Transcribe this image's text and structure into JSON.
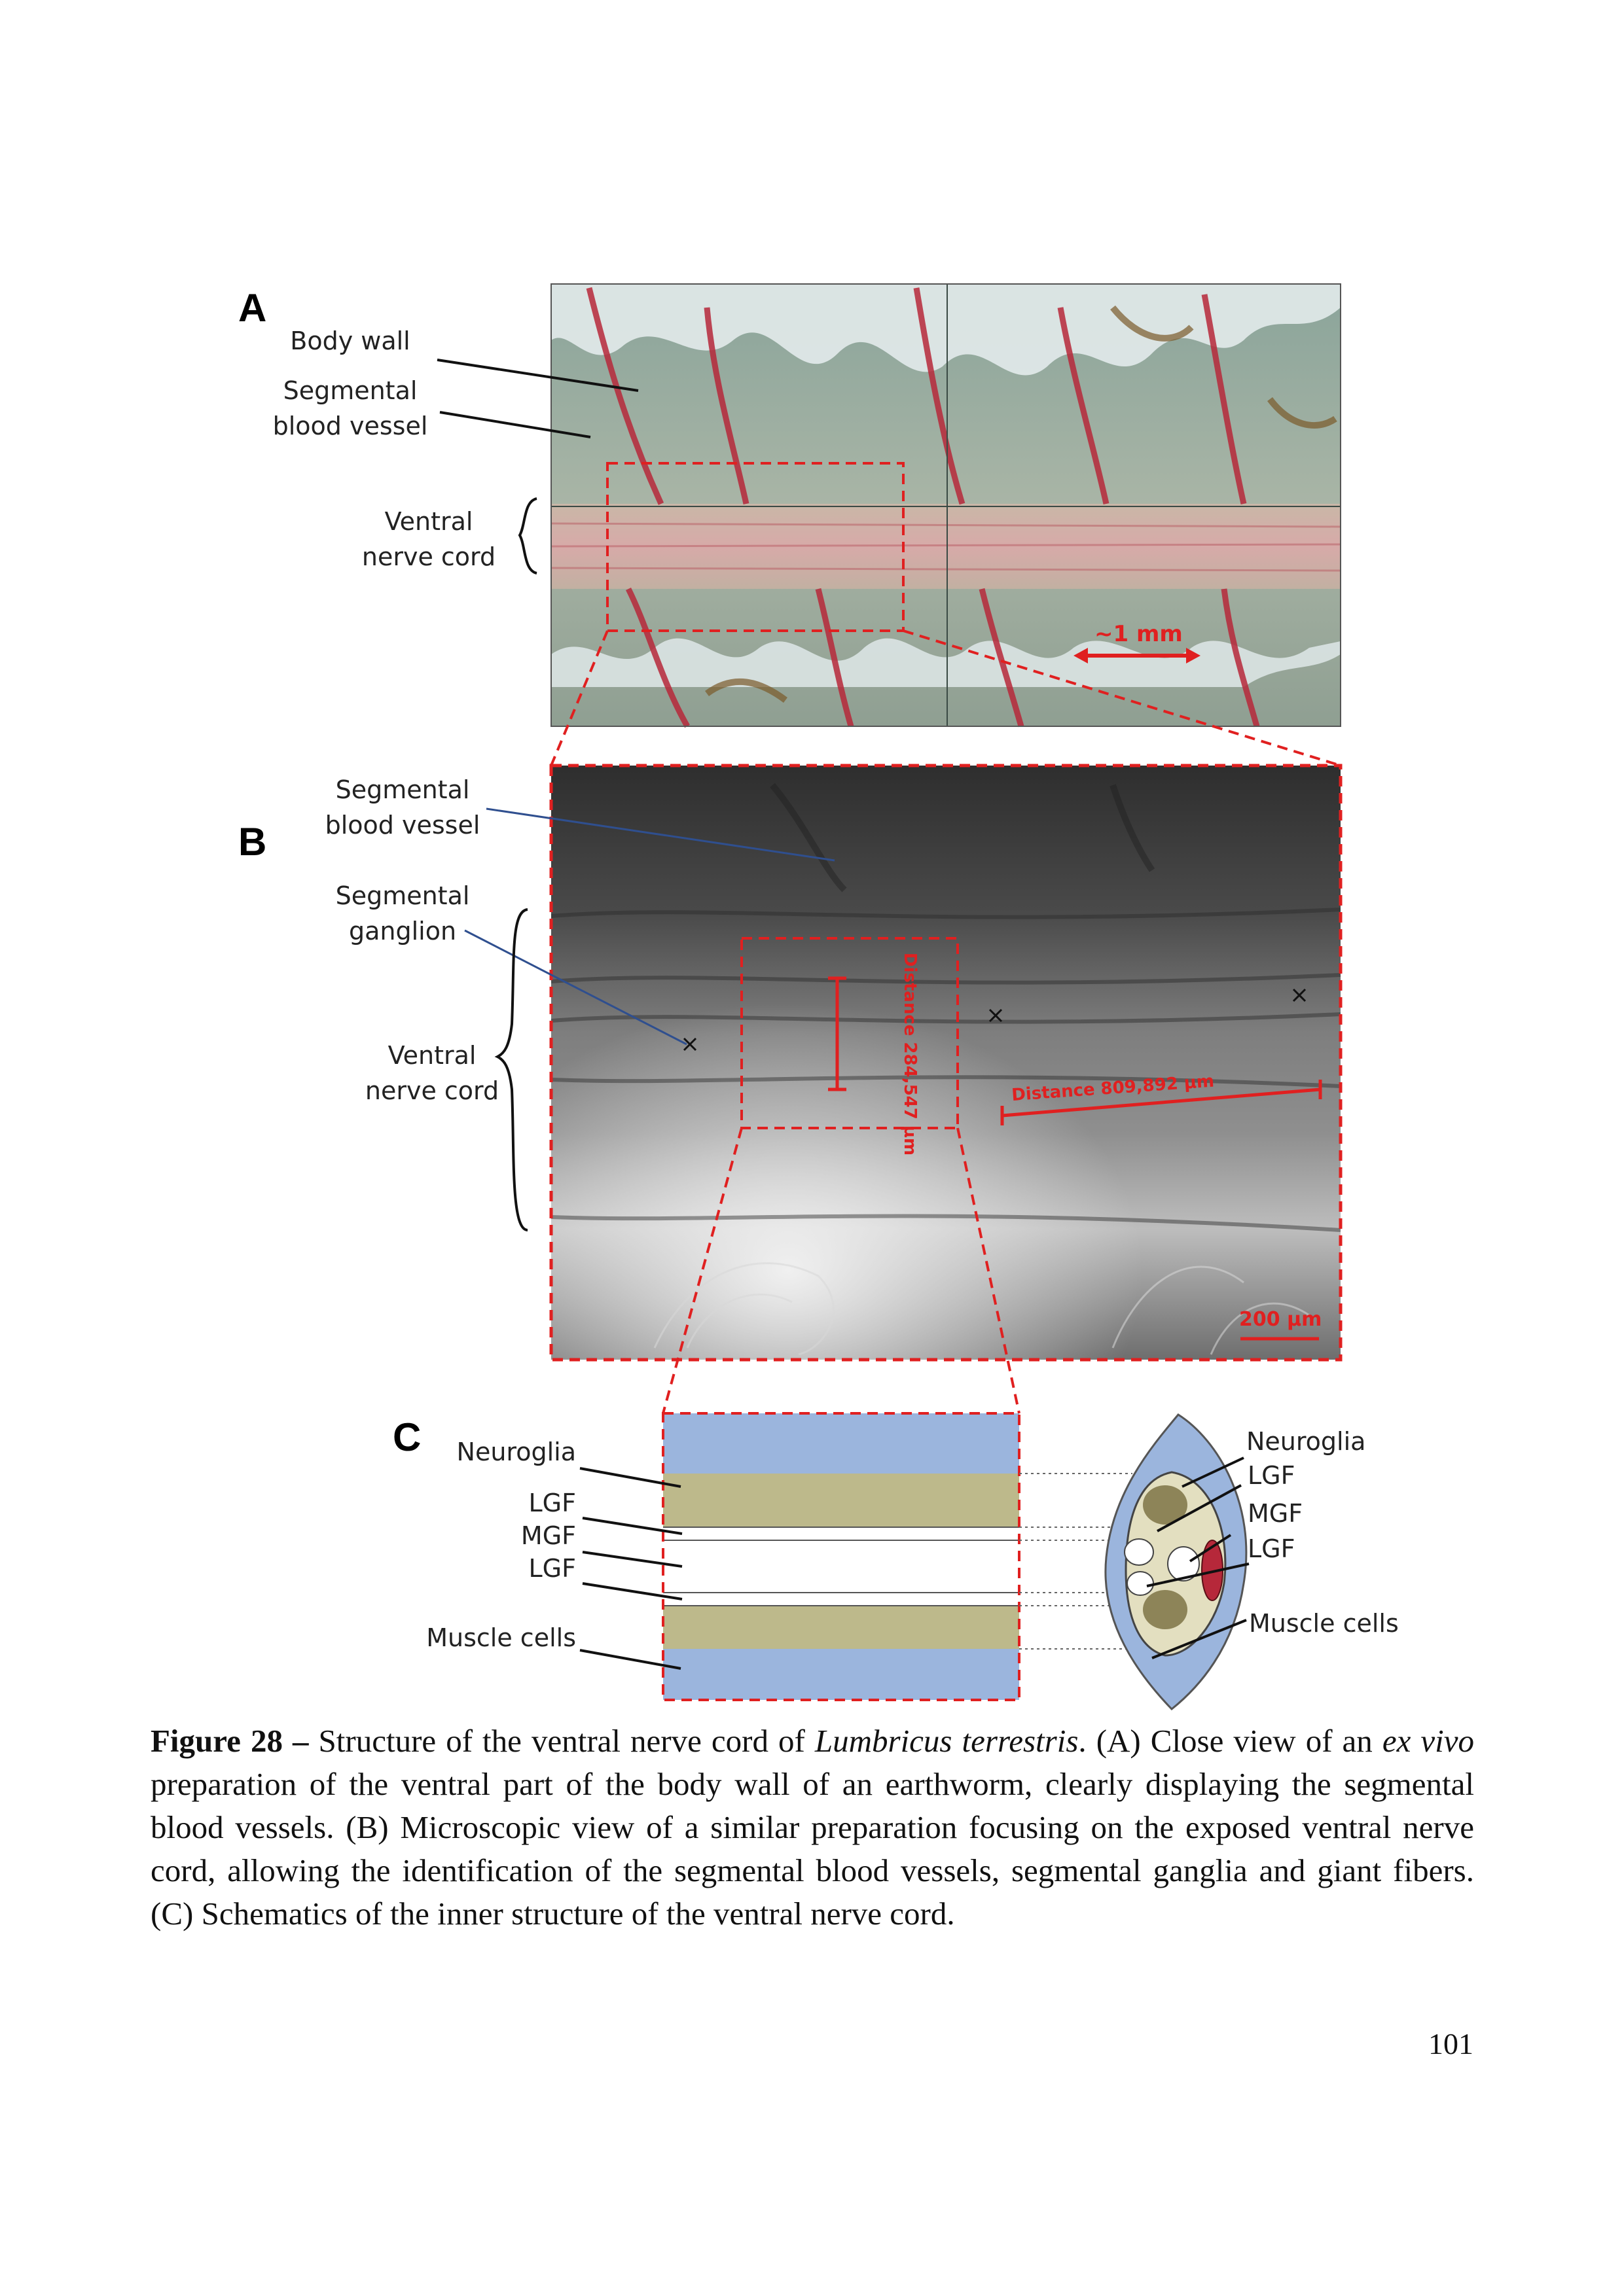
{
  "panels": {
    "a": "A",
    "b": "B",
    "c": "C"
  },
  "panel_a": {
    "body_wall": "Body wall",
    "seg_vessel_line1": "Segmental",
    "seg_vessel_line2": "blood vessel",
    "vnc_line1": "Ventral",
    "vnc_line2": "nerve cord",
    "scale": "~1 mm"
  },
  "panel_b": {
    "seg_vessel_line1": "Segmental",
    "seg_vessel_line2": "blood vessel",
    "ganglion_line1": "Segmental",
    "ganglion_line2": "ganglion",
    "vnc_line1": "Ventral",
    "vnc_line2": "nerve cord",
    "dist_vertical": "Distance 284,547 µm",
    "dist_horizontal": "Distance 809,892 µm",
    "scale": "200 µm"
  },
  "panel_c": {
    "left_neuroglia": "Neuroglia",
    "left_lgf1": "LGF",
    "left_mgf": "MGF",
    "left_lgf2": "LGF",
    "left_muscle": "Muscle cells",
    "right_neuroglia": "Neuroglia",
    "right_lgf1": "LGF",
    "right_mgf": "MGF",
    "right_lgf2": "LGF",
    "right_muscle": "Muscle cells"
  },
  "colors": {
    "neuroglia": "#bdb98b",
    "muscle": "#9bb5dd",
    "fiber": "#ffffff",
    "dash": "#e02020",
    "vessel": "#b6283a"
  },
  "caption": {
    "figure_label": "Figure 28",
    "dash": " – ",
    "text1": "Structure of the ventral nerve cord of ",
    "species": "Lumbricus terrestris",
    "text2": ". (A) Close view of an ",
    "ex": "ex vivo",
    "text3": " preparation of the ventral part of the body wall of an earthworm, clearly displaying the segmental blood vessels. (B) Microscopic view of a similar preparation focusing on the exposed ventral nerve cord, allowing the identification of the segmental blood vessels, segmental ganglia and giant fibers. (C) Schematics of the inner structure of the ventral nerve cord."
  },
  "page_number": "101"
}
